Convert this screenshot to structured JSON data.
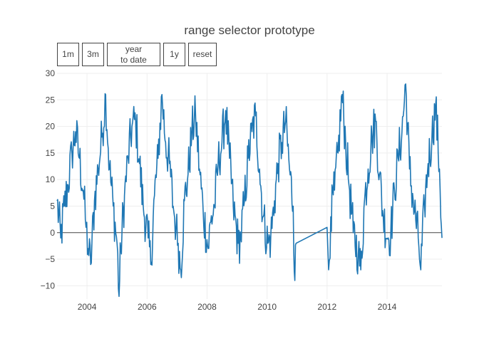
{
  "title": "range selector prototype",
  "range_selector": {
    "buttons": [
      {
        "label": "1m"
      },
      {
        "label": "3m"
      },
      {
        "label": "year\nto date"
      },
      {
        "label": "1y"
      },
      {
        "label": "reset"
      }
    ]
  },
  "colors": {
    "line": "#1f77b4",
    "grid": "#eeeeee",
    "zeroline": "#444444",
    "text": "#444444"
  },
  "chart_data": {
    "type": "line",
    "title": "range selector prototype",
    "xlabel": "",
    "ylabel": "",
    "x_axis": {
      "type": "date",
      "range": [
        "2003-01-01",
        "2015-10-31"
      ],
      "tick_labels": [
        "2004",
        "2006",
        "2008",
        "2010",
        "2012",
        "2014"
      ]
    },
    "y_axis": {
      "range": [
        -12.5,
        30
      ],
      "tick_values": [
        -10,
        -5,
        0,
        5,
        10,
        15,
        20,
        25,
        30
      ],
      "tick_labels": [
        "−10",
        "−5",
        "0",
        "5",
        "10",
        "15",
        "20",
        "25",
        "30"
      ]
    },
    "grid": true,
    "zeroline": true,
    "legend": "none",
    "series": [
      {
        "color": "#1f77b4",
        "x": [
          "2003-01-01",
          "2003-02-15",
          "2003-04-01",
          "2003-05-15",
          "2003-07-01",
          "2003-08-15",
          "2003-10-01",
          "2003-11-15",
          "2003-12-20",
          "2004-01-15",
          "2004-02-15",
          "2004-04-01",
          "2004-05-15",
          "2004-07-01",
          "2004-08-15",
          "2004-10-01",
          "2004-11-15",
          "2005-01-01",
          "2005-01-25",
          "2005-02-15",
          "2005-04-01",
          "2005-05-15",
          "2005-07-01",
          "2005-08-15",
          "2005-10-01",
          "2005-11-15",
          "2006-01-15",
          "2006-02-15",
          "2006-04-01",
          "2006-05-15",
          "2006-07-01",
          "2006-08-15",
          "2006-10-01",
          "2006-11-15",
          "2006-12-20",
          "2007-01-15",
          "2007-02-15",
          "2007-04-01",
          "2007-05-15",
          "2007-07-01",
          "2007-08-15",
          "2007-10-01",
          "2007-11-15",
          "2008-01-15",
          "2008-02-15",
          "2008-04-01",
          "2008-05-15",
          "2008-07-01",
          "2008-08-15",
          "2008-10-01",
          "2008-11-15",
          "2009-01-15",
          "2009-02-15",
          "2009-04-01",
          "2009-05-15",
          "2009-07-01",
          "2009-08-15",
          "2009-10-01",
          "2009-11-15",
          "2010-01-10",
          "2010-02-15",
          "2010-04-01",
          "2010-05-15",
          "2010-07-01",
          "2010-08-15",
          "2010-10-01",
          "2010-11-15",
          "2010-12-05",
          "2010-12-20",
          "2012-01-01",
          "2012-01-20",
          "2012-02-15",
          "2012-04-01",
          "2012-05-15",
          "2012-07-01",
          "2012-08-15",
          "2012-10-01",
          "2012-11-15",
          "2013-01-15",
          "2013-02-15",
          "2013-04-01",
          "2013-05-15",
          "2013-07-01",
          "2013-08-15",
          "2013-10-01",
          "2013-11-15",
          "2014-01-15",
          "2014-02-15",
          "2014-04-01",
          "2014-05-15",
          "2014-07-01",
          "2014-08-15",
          "2014-10-01",
          "2014-11-15",
          "2015-01-15",
          "2015-02-15",
          "2015-04-01",
          "2015-05-15",
          "2015-07-01",
          "2015-08-15",
          "2015-10-01",
          "2015-10-31"
        ],
        "y": [
          6,
          -1,
          5,
          9,
          15,
          19,
          14,
          8,
          1,
          -3,
          -6,
          6,
          12,
          18,
          26,
          12,
          5,
          -2,
          -12,
          -3,
          7,
          14,
          20,
          21,
          13,
          5,
          -1,
          -6,
          7,
          14,
          26,
          17,
          13,
          5,
          1,
          -2,
          -7,
          6,
          11,
          19,
          22,
          12,
          4,
          -3,
          2,
          5,
          13,
          17,
          23,
          14,
          5,
          -2,
          -1,
          6,
          14,
          19,
          22,
          12,
          3,
          -2,
          -1,
          6,
          13,
          17,
          21,
          12,
          5,
          -9,
          -2,
          1,
          -7,
          3,
          8,
          15,
          26,
          17,
          8,
          0,
          -4,
          -7,
          6,
          12,
          18,
          21,
          11,
          3,
          -1,
          0,
          8,
          14,
          19,
          28,
          12,
          6,
          -1,
          -7,
          5,
          13,
          18,
          24,
          12,
          -1
        ]
      }
    ]
  }
}
